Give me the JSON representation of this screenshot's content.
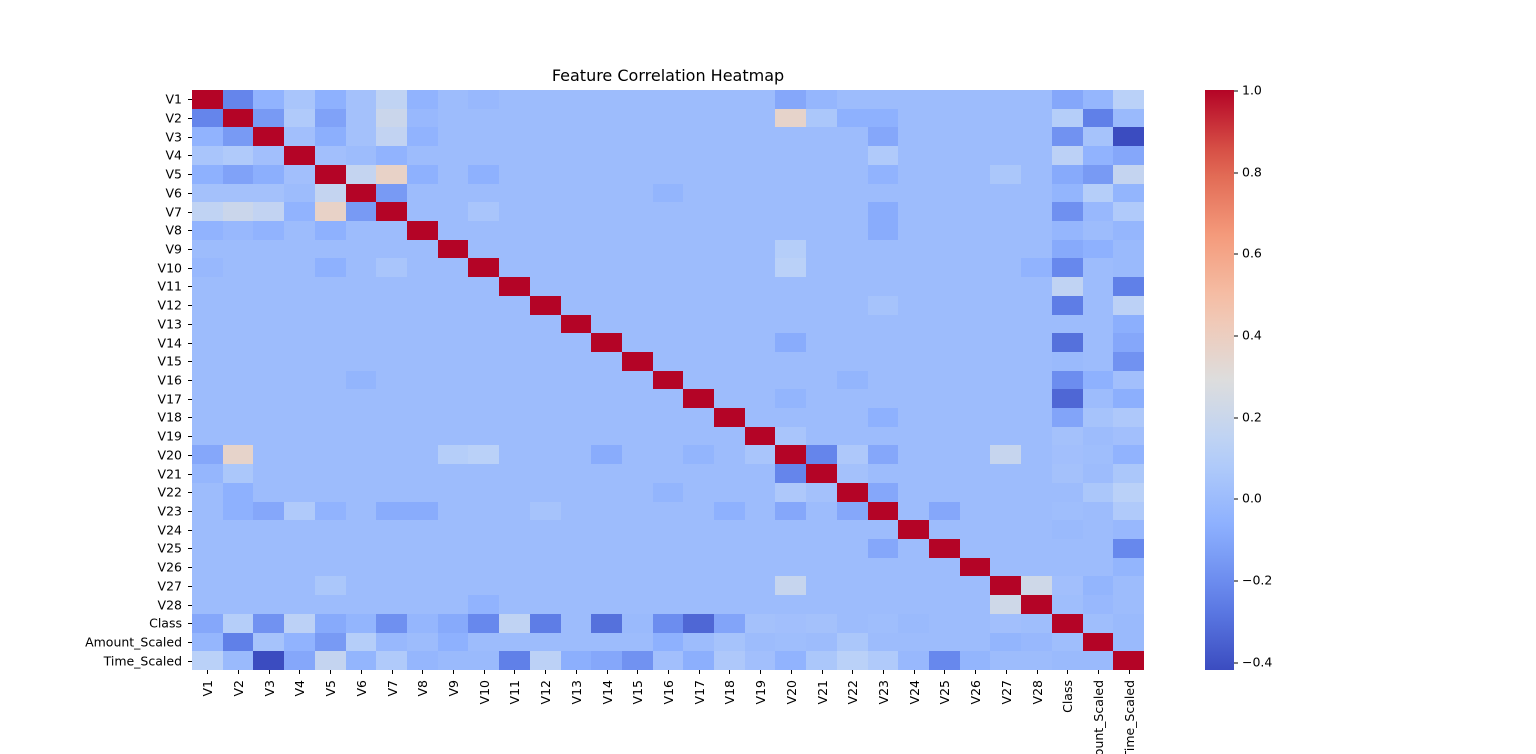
{
  "chart_data": {
    "type": "heatmap",
    "title": "Feature Correlation Heatmap",
    "xlabel": "",
    "ylabel": "",
    "colormap": "coolwarm",
    "vmin": -0.42,
    "vmax": 1.0,
    "colorbar_ticks": [
      "1.0",
      "0.8",
      "0.6",
      "0.4",
      "0.2",
      "0.0",
      "−0.2",
      "−0.4"
    ],
    "colorbar_tick_values": [
      1.0,
      0.8,
      0.6,
      0.4,
      0.2,
      0.0,
      -0.2,
      -0.4
    ],
    "labels": [
      "V1",
      "V2",
      "V3",
      "V4",
      "V5",
      "V6",
      "V7",
      "V8",
      "V9",
      "V10",
      "V11",
      "V12",
      "V13",
      "V14",
      "V15",
      "V16",
      "V17",
      "V18",
      "V19",
      "V20",
      "V21",
      "V22",
      "V23",
      "V24",
      "V25",
      "V26",
      "V27",
      "V28",
      "Class",
      "Amount_Scaled",
      "Time_Scaled"
    ],
    "x_tick_labels_visible": [
      "V1",
      "V2",
      "V3",
      "V4",
      "V5",
      "V6",
      "V7",
      "V8",
      "V9",
      "V10",
      "V11",
      "V12",
      "V13",
      "V14",
      "V15",
      "V16",
      "V17",
      "V18",
      "V19",
      "V20",
      "V21",
      "V22",
      "V23",
      "V24",
      "V25",
      "V26",
      "V27",
      "V28",
      "Class",
      "unt_Scaled",
      "me_Scaled"
    ],
    "background_value": 0.0,
    "pairs": [
      [
        "V1",
        "V2",
        -0.23
      ],
      [
        "V1",
        "V3",
        -0.05
      ],
      [
        "V1",
        "V4",
        0.05
      ],
      [
        "V1",
        "V5",
        -0.06
      ],
      [
        "V1",
        "V6",
        0.03
      ],
      [
        "V1",
        "V7",
        0.15
      ],
      [
        "V1",
        "V8",
        -0.05
      ],
      [
        "V1",
        "V9",
        0.0
      ],
      [
        "V1",
        "V10",
        -0.02
      ],
      [
        "V1",
        "V20",
        -0.1
      ],
      [
        "V1",
        "V21",
        -0.03
      ],
      [
        "V1",
        "Class",
        -0.1
      ],
      [
        "V1",
        "Amount_Scaled",
        -0.03
      ],
      [
        "V1",
        "Time_Scaled",
        0.12
      ],
      [
        "V2",
        "V3",
        -0.15
      ],
      [
        "V2",
        "V4",
        0.08
      ],
      [
        "V2",
        "V5",
        -0.12
      ],
      [
        "V2",
        "V6",
        0.03
      ],
      [
        "V2",
        "V7",
        0.2
      ],
      [
        "V2",
        "V8",
        -0.02
      ],
      [
        "V2",
        "V20",
        0.36
      ],
      [
        "V2",
        "V21",
        0.06
      ],
      [
        "V2",
        "V22",
        -0.06
      ],
      [
        "V2",
        "V23",
        -0.06
      ],
      [
        "V2",
        "Class",
        0.1
      ],
      [
        "V2",
        "Amount_Scaled",
        -0.25
      ],
      [
        "V2",
        "Time_Scaled",
        -0.01
      ],
      [
        "V3",
        "V4",
        0.02
      ],
      [
        "V3",
        "V5",
        -0.07
      ],
      [
        "V3",
        "V6",
        0.03
      ],
      [
        "V3",
        "V7",
        0.16
      ],
      [
        "V3",
        "V8",
        -0.05
      ],
      [
        "V3",
        "V23",
        -0.1
      ],
      [
        "V3",
        "Class",
        -0.18
      ],
      [
        "V3",
        "Amount_Scaled",
        0.04
      ],
      [
        "V3",
        "Time_Scaled",
        -0.42
      ],
      [
        "V4",
        "V5",
        0.02
      ],
      [
        "V4",
        "V7",
        -0.05
      ],
      [
        "V4",
        "V23",
        0.08
      ],
      [
        "V4",
        "Class",
        0.13
      ],
      [
        "V4",
        "Amount_Scaled",
        -0.05
      ],
      [
        "V4",
        "Time_Scaled",
        -0.1
      ],
      [
        "V5",
        "V6",
        0.17
      ],
      [
        "V5",
        "V7",
        0.37
      ],
      [
        "V5",
        "V8",
        -0.06
      ],
      [
        "V5",
        "V10",
        -0.06
      ],
      [
        "V5",
        "V23",
        -0.05
      ],
      [
        "V5",
        "V27",
        0.06
      ],
      [
        "V5",
        "Class",
        -0.09
      ],
      [
        "V5",
        "Amount_Scaled",
        -0.15
      ],
      [
        "V5",
        "Time_Scaled",
        0.17
      ],
      [
        "V6",
        "V7",
        -0.15
      ],
      [
        "V6",
        "V16",
        -0.04
      ],
      [
        "V6",
        "Class",
        -0.04
      ],
      [
        "V6",
        "Amount_Scaled",
        0.1
      ],
      [
        "V6",
        "Time_Scaled",
        -0.04
      ],
      [
        "V7",
        "V10",
        0.05
      ],
      [
        "V7",
        "V23",
        -0.08
      ],
      [
        "V7",
        "Class",
        -0.19
      ],
      [
        "V7",
        "Amount_Scaled",
        -0.02
      ],
      [
        "V7",
        "Time_Scaled",
        0.08
      ],
      [
        "V8",
        "V23",
        -0.08
      ],
      [
        "V8",
        "Class",
        -0.03
      ],
      [
        "V8",
        "Time_Scaled",
        -0.03
      ],
      [
        "V9",
        "V20",
        0.1
      ],
      [
        "V9",
        "Class",
        -0.09
      ],
      [
        "V9",
        "Amount_Scaled",
        -0.06
      ],
      [
        "V9",
        "Time_Scaled",
        -0.01
      ],
      [
        "V10",
        "V20",
        0.12
      ],
      [
        "V10",
        "V28",
        -0.05
      ],
      [
        "V10",
        "Class",
        -0.22
      ],
      [
        "V10",
        "Time_Scaled",
        -0.01
      ],
      [
        "V11",
        "Class",
        0.15
      ],
      [
        "V11",
        "Time_Scaled",
        -0.25
      ],
      [
        "V12",
        "V23",
        0.04
      ],
      [
        "V12",
        "Class",
        -0.26
      ],
      [
        "V12",
        "Time_Scaled",
        0.13
      ],
      [
        "V13",
        "Time_Scaled",
        -0.07
      ],
      [
        "V14",
        "V20",
        -0.08
      ],
      [
        "V14",
        "Class",
        -0.3
      ],
      [
        "V14",
        "Time_Scaled",
        -0.1
      ],
      [
        "V15",
        "Class",
        -0.01
      ],
      [
        "V15",
        "Time_Scaled",
        -0.18
      ],
      [
        "V16",
        "V22",
        -0.04
      ],
      [
        "V16",
        "Class",
        -0.2
      ],
      [
        "V16",
        "Amount_Scaled",
        -0.06
      ],
      [
        "V16",
        "Time_Scaled",
        0.02
      ],
      [
        "V17",
        "V20",
        -0.04
      ],
      [
        "V17",
        "Class",
        -0.33
      ],
      [
        "V17",
        "Time_Scaled",
        -0.07
      ],
      [
        "V18",
        "V23",
        -0.06
      ],
      [
        "V18",
        "Class",
        -0.11
      ],
      [
        "V18",
        "Amount_Scaled",
        0.04
      ],
      [
        "V18",
        "Time_Scaled",
        0.07
      ],
      [
        "V19",
        "V20",
        0.05
      ],
      [
        "V19",
        "Class",
        0.03
      ],
      [
        "V19",
        "Time_Scaled",
        0.02
      ],
      [
        "V20",
        "V21",
        -0.23
      ],
      [
        "V20",
        "V22",
        0.07
      ],
      [
        "V20",
        "V23",
        -0.1
      ],
      [
        "V20",
        "V27",
        0.18
      ],
      [
        "V20",
        "Class",
        0.02
      ],
      [
        "V20",
        "Amount_Scaled",
        0.01
      ],
      [
        "V20",
        "Time_Scaled",
        -0.05
      ],
      [
        "V21",
        "V22",
        0.03
      ],
      [
        "V21",
        "V23",
        0.0
      ],
      [
        "V21",
        "Class",
        0.03
      ],
      [
        "V21",
        "Time_Scaled",
        0.06
      ],
      [
        "V22",
        "V23",
        -0.1
      ],
      [
        "V22",
        "Amount_Scaled",
        0.06
      ],
      [
        "V22",
        "Time_Scaled",
        0.12
      ],
      [
        "V23",
        "V25",
        -0.1
      ],
      [
        "V23",
        "Class",
        0.01
      ],
      [
        "V23",
        "Time_Scaled",
        0.08
      ],
      [
        "V24",
        "Class",
        -0.01
      ],
      [
        "V24",
        "Time_Scaled",
        -0.02
      ],
      [
        "V25",
        "Time_Scaled",
        -0.22
      ],
      [
        "V26",
        "Time_Scaled",
        -0.04
      ],
      [
        "V27",
        "V28",
        0.22
      ],
      [
        "V27",
        "Class",
        0.02
      ],
      [
        "V27",
        "Amount_Scaled",
        -0.04
      ],
      [
        "V28",
        "Class",
        0.01
      ],
      [
        "V28",
        "Amount_Scaled",
        -0.02
      ],
      [
        "Class",
        "Amount_Scaled",
        0.01
      ],
      [
        "Class",
        "Time_Scaled",
        -0.01
      ],
      [
        "Amount_Scaled",
        "Time_Scaled",
        -0.01
      ]
    ],
    "legend_position": "right (colorbar)",
    "grid": false
  }
}
